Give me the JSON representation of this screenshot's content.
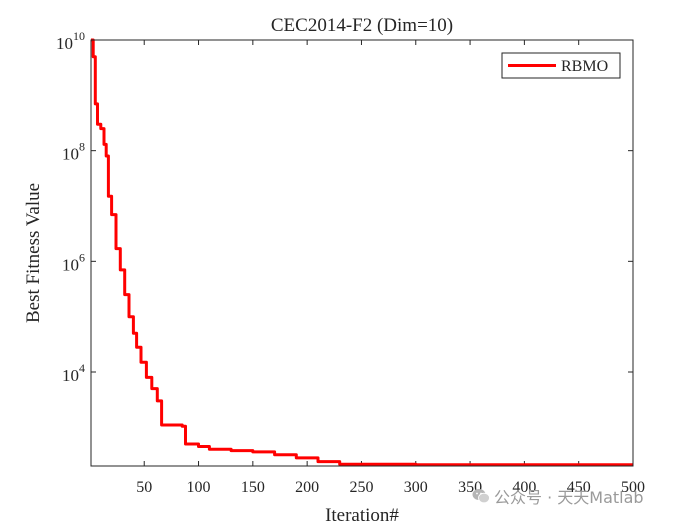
{
  "chart_data": {
    "type": "line",
    "title": "CEC2014-F2 (Dim=10)",
    "xlabel": "Iteration#",
    "ylabel": "Best Fitness Value",
    "xlim": [
      1,
      500
    ],
    "ylim": [
      200,
      10000000000
    ],
    "yscale": "log",
    "grid": false,
    "legend_position": "top-right",
    "x_ticks": [
      50,
      100,
      150,
      200,
      250,
      300,
      350,
      400,
      450,
      500
    ],
    "y_ticks": [
      {
        "value": 10000,
        "base": "10",
        "exp": "4"
      },
      {
        "value": 1000000,
        "base": "10",
        "exp": "6"
      },
      {
        "value": 100000000,
        "base": "10",
        "exp": "8"
      },
      {
        "value": 10000000000,
        "base": "10",
        "exp": "10"
      }
    ],
    "series": [
      {
        "name": "RBMO",
        "color": "#ff0000",
        "points": [
          [
            1,
            10000000000
          ],
          [
            3,
            5000000000
          ],
          [
            5,
            700000000
          ],
          [
            7,
            300000000
          ],
          [
            10,
            250000000
          ],
          [
            13,
            130000000
          ],
          [
            15,
            80000000
          ],
          [
            17,
            15000000
          ],
          [
            20,
            7000000
          ],
          [
            24,
            1700000
          ],
          [
            28,
            700000
          ],
          [
            32,
            250000
          ],
          [
            36,
            100000
          ],
          [
            40,
            50000
          ],
          [
            43,
            28000
          ],
          [
            47,
            15000
          ],
          [
            52,
            8000
          ],
          [
            57,
            5000
          ],
          [
            62,
            3000
          ],
          [
            66,
            1100
          ],
          [
            85,
            1050
          ],
          [
            88,
            500
          ],
          [
            100,
            450
          ],
          [
            110,
            400
          ],
          [
            130,
            380
          ],
          [
            150,
            360
          ],
          [
            170,
            320
          ],
          [
            190,
            280
          ],
          [
            210,
            240
          ],
          [
            230,
            215
          ],
          [
            300,
            210
          ],
          [
            500,
            210
          ]
        ]
      }
    ]
  },
  "watermark": {
    "text": "公众号 · 天天Matlab",
    "icon": "wechat-icon",
    "color": "#9a9a9a"
  }
}
